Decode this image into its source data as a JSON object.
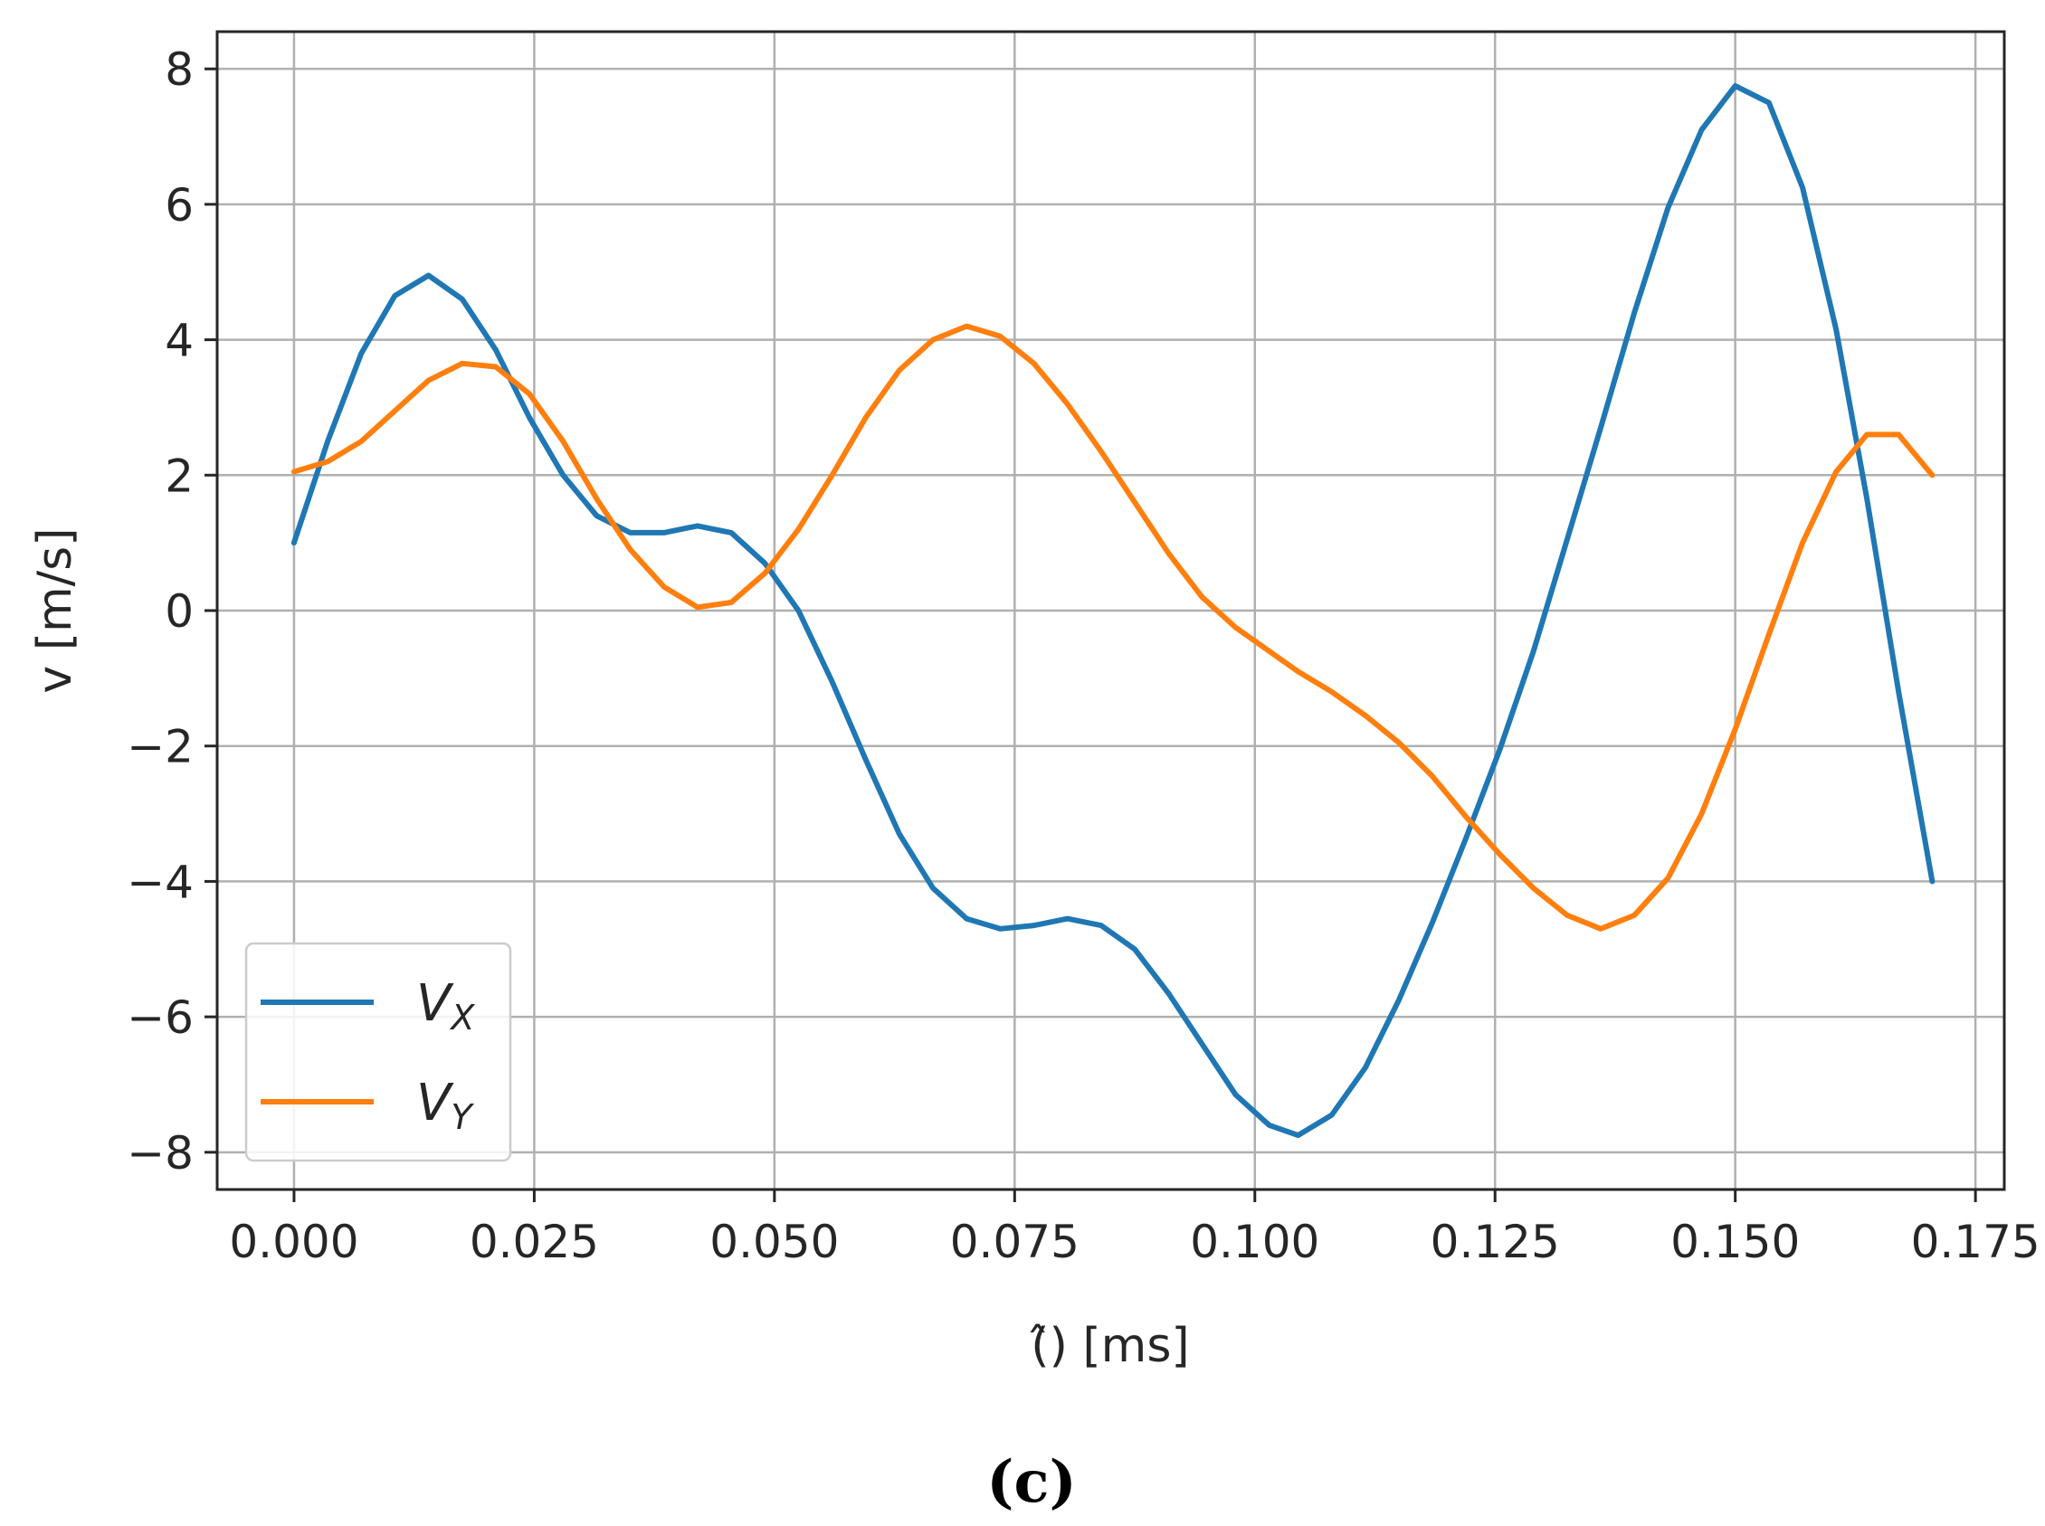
{
  "panel_label": "(c)",
  "chart_data": {
    "type": "line",
    "xlabel": "(̂) [ms]",
    "ylabel": "v [m/s]",
    "xlim": [
      -0.008,
      0.178
    ],
    "ylim": [
      -8.55,
      8.55
    ],
    "xticks": [
      0.0,
      0.025,
      0.05,
      0.075,
      0.1,
      0.125,
      0.15,
      0.175
    ],
    "xtick_labels": [
      "0.000",
      "0.025",
      "0.050",
      "0.075",
      "0.100",
      "0.125",
      "0.150",
      "0.175"
    ],
    "yticks": [
      -8,
      -6,
      -4,
      -2,
      0,
      2,
      4,
      6,
      8
    ],
    "ytick_labels": [
      "−8",
      "−6",
      "−4",
      "−2",
      "0",
      "2",
      "4",
      "6",
      "8"
    ],
    "grid": true,
    "legend_position": "lower-left",
    "colors": {
      "vx": "#1f77b4",
      "vy": "#ff7f0e"
    },
    "series": [
      {
        "name": "Vx",
        "legend_main": "V",
        "legend_sub": "X",
        "color": "#1f77b4",
        "x": [
          0.0,
          0.0035,
          0.007,
          0.0105,
          0.014,
          0.0175,
          0.021,
          0.0245,
          0.028,
          0.0315,
          0.035,
          0.0385,
          0.042,
          0.0455,
          0.049,
          0.0525,
          0.056,
          0.0595,
          0.063,
          0.0665,
          0.07,
          0.0735,
          0.077,
          0.0805,
          0.084,
          0.0875,
          0.091,
          0.0945,
          0.098,
          0.1015,
          0.1045,
          0.108,
          0.1115,
          0.115,
          0.1185,
          0.122,
          0.1255,
          0.129,
          0.1325,
          0.136,
          0.1395,
          0.143,
          0.1465,
          0.15,
          0.1535,
          0.157,
          0.1605,
          0.1637,
          0.167,
          0.1705
        ],
        "y": [
          1.0,
          2.5,
          3.8,
          4.65,
          4.95,
          4.6,
          3.85,
          2.85,
          2.0,
          1.4,
          1.15,
          1.15,
          1.25,
          1.15,
          0.7,
          0.0,
          -1.05,
          -2.2,
          -3.3,
          -4.1,
          -4.55,
          -4.7,
          -4.65,
          -4.55,
          -4.65,
          -5.0,
          -5.65,
          -6.4,
          -7.15,
          -7.6,
          -7.75,
          -7.45,
          -6.75,
          -5.75,
          -4.6,
          -3.35,
          -2.05,
          -0.6,
          1.05,
          2.7,
          4.4,
          5.95,
          7.1,
          7.75,
          7.5,
          6.25,
          4.15,
          1.65,
          -1.2,
          -4.0
        ]
      },
      {
        "name": "Vy",
        "legend_main": "V",
        "legend_sub": "Y",
        "color": "#ff7f0e",
        "x": [
          0.0,
          0.0035,
          0.007,
          0.0105,
          0.014,
          0.0175,
          0.021,
          0.0245,
          0.028,
          0.0315,
          0.035,
          0.0385,
          0.042,
          0.0455,
          0.049,
          0.0525,
          0.056,
          0.0595,
          0.063,
          0.0665,
          0.07,
          0.0735,
          0.077,
          0.0805,
          0.084,
          0.0875,
          0.091,
          0.0945,
          0.098,
          0.1015,
          0.1045,
          0.108,
          0.1115,
          0.115,
          0.1185,
          0.122,
          0.1255,
          0.129,
          0.1325,
          0.136,
          0.1395,
          0.143,
          0.1465,
          0.15,
          0.1535,
          0.157,
          0.1605,
          0.1637,
          0.167,
          0.1705
        ],
        "y": [
          2.05,
          2.2,
          2.5,
          2.95,
          3.4,
          3.65,
          3.6,
          3.2,
          2.5,
          1.65,
          0.9,
          0.35,
          0.05,
          0.12,
          0.55,
          1.2,
          2.0,
          2.85,
          3.55,
          4.0,
          4.2,
          4.05,
          3.65,
          3.05,
          2.35,
          1.6,
          0.85,
          0.2,
          -0.25,
          -0.6,
          -0.9,
          -1.2,
          -1.55,
          -1.95,
          -2.45,
          -3.05,
          -3.6,
          -4.1,
          -4.5,
          -4.7,
          -4.5,
          -3.95,
          -3.0,
          -1.75,
          -0.35,
          1.0,
          2.05,
          2.6,
          2.6,
          2.0
        ]
      }
    ]
  }
}
